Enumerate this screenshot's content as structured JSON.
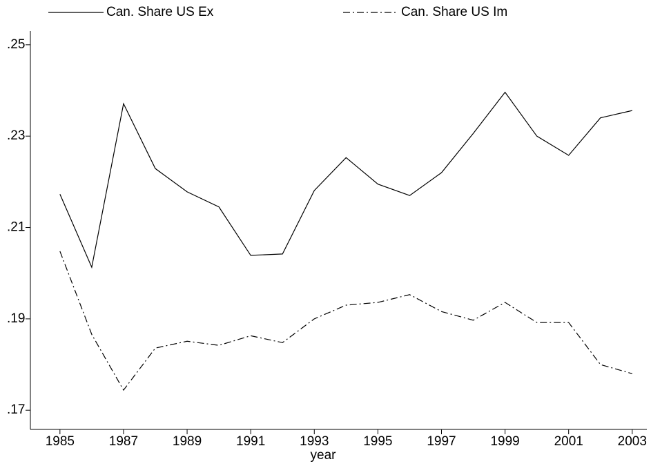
{
  "chart_data": {
    "type": "line",
    "x_label": "year",
    "x": [
      1985,
      1986,
      1987,
      1988,
      1989,
      1990,
      1991,
      1992,
      1993,
      1994,
      1995,
      1996,
      1997,
      1998,
      1999,
      2000,
      2001,
      2002,
      2003
    ],
    "series": [
      {
        "name": "Can. Share US Ex",
        "color": "#000000",
        "line_style": "solid",
        "values": [
          0.2173,
          0.2013,
          0.2371,
          0.2229,
          0.2178,
          0.2145,
          0.2039,
          0.2042,
          0.2181,
          0.2253,
          0.2195,
          0.217,
          0.222,
          0.2306,
          0.2396,
          0.23,
          0.2258,
          0.234,
          0.2356
        ]
      },
      {
        "name": "Can. Share US Im",
        "color": "#000000",
        "line_style": "dashdot",
        "values": [
          0.2048,
          0.1866,
          0.1744,
          0.1836,
          0.1851,
          0.1842,
          0.1863,
          0.1848,
          0.19,
          0.193,
          0.1936,
          0.1953,
          0.1916,
          0.1897,
          0.1936,
          0.1892,
          0.1892,
          0.18,
          0.178
        ]
      }
    ],
    "xlim": [
      1984.07,
      2003.46
    ],
    "xticks": [
      1985,
      1987,
      1989,
      1991,
      1993,
      1995,
      1997,
      1999,
      2001,
      2003
    ],
    "ylim": [
      0.1658,
      0.253
    ],
    "yticks": [
      {
        "value": 0.17,
        "label": ".17"
      },
      {
        "value": 0.19,
        "label": ".19"
      },
      {
        "value": 0.21,
        "label": ".21"
      },
      {
        "value": 0.23,
        "label": ".23"
      },
      {
        "value": 0.25,
        "label": ".25"
      }
    ],
    "grid": false
  }
}
